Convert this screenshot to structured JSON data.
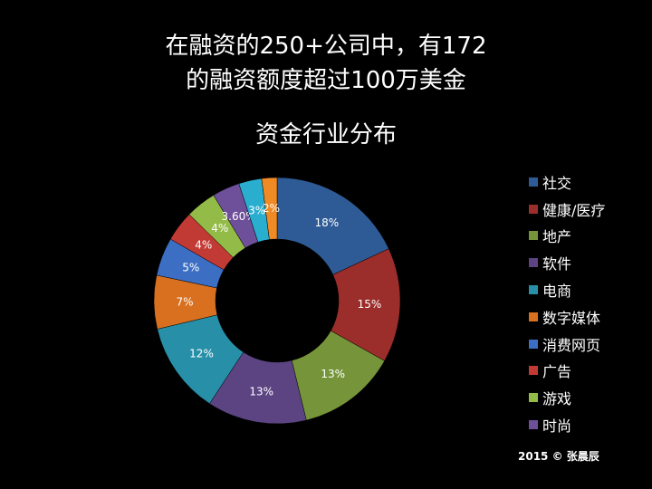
{
  "heading": {
    "line1": "在融资的250+公司中，有172",
    "line2": "的融资额度超过100万美金"
  },
  "credit": "2015 ©  张晨辰",
  "chart_data": {
    "type": "pie",
    "title": "资金行业分布",
    "donut": true,
    "legend_position": "right",
    "unit": "%",
    "slices": [
      {
        "name": "社交",
        "value": 18,
        "label": "18%",
        "color": "#2e5b95"
      },
      {
        "name": "健康/医疗",
        "value": 15,
        "label": "15%",
        "color": "#9b2d2a"
      },
      {
        "name": "地产",
        "value": 13,
        "label": "13%",
        "color": "#76953a"
      },
      {
        "name": "软件",
        "value": 13,
        "label": "13%",
        "color": "#5c4483"
      },
      {
        "name": "电商",
        "value": 12,
        "label": "12%",
        "color": "#2790a8"
      },
      {
        "name": "数字媒体",
        "value": 7,
        "label": "7%",
        "color": "#d87020"
      },
      {
        "name": "消费网页",
        "value": 5,
        "label": "5%",
        "color": "#3c6fc4"
      },
      {
        "name": "广告",
        "value": 4,
        "label": "4%",
        "color": "#c23a34"
      },
      {
        "name": "游戏",
        "value": 4,
        "label": "4%",
        "color": "#93bb47"
      },
      {
        "name": "时尚",
        "value": 3.6,
        "label": "3.60%",
        "color": "#6e4f9a"
      },
      {
        "name": "",
        "value": 3,
        "label": "3%",
        "color": "#2aaed0"
      },
      {
        "name": "",
        "value": 2,
        "label": "2%",
        "color": "#f08a24"
      }
    ]
  }
}
